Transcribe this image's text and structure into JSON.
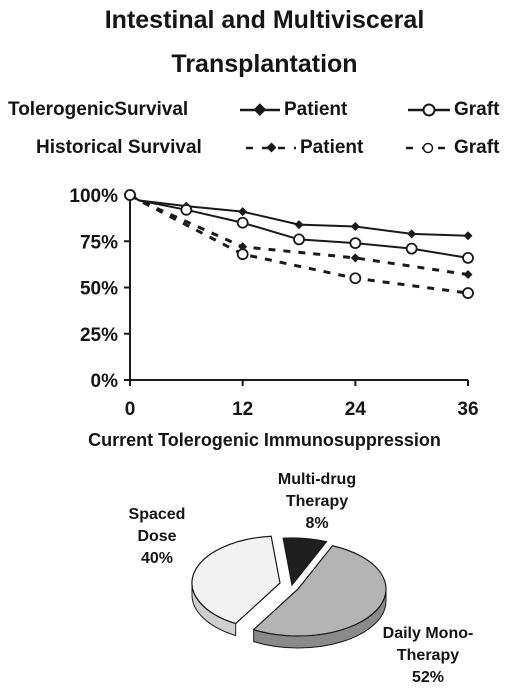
{
  "title_line1": "Intestinal and Multivisceral",
  "title_line2": "Transplantation",
  "legend": {
    "row1_label": "TolerogenicSurvival",
    "row2_label": "Historical Survival",
    "patient": "Patient",
    "graft": "Graft"
  },
  "colors": {
    "line": "#1a1a1a",
    "pie_multi": "#1f1f1f",
    "pie_daily": "#b4b4b4",
    "pie_spaced": "#f2f2f2"
  },
  "chart_data": [
    {
      "type": "line",
      "title": "",
      "xlabel": "",
      "ylabel": "",
      "xlim": [
        0,
        36
      ],
      "ylim": [
        0,
        100
      ],
      "x_ticks": [
        "0",
        "12",
        "24",
        "36"
      ],
      "y_ticks": [
        "0%",
        "25%",
        "50%",
        "75%",
        "100%"
      ],
      "grid": false,
      "legend_position": "top",
      "series": [
        {
          "name": "Patient",
          "group": "TolerogenicSurvival",
          "style": "solid",
          "marker": "diamond-filled",
          "x": [
            0,
            1,
            6,
            12,
            18,
            24,
            30,
            36
          ],
          "values": [
            100,
            97,
            94,
            91,
            84,
            83,
            79,
            78
          ]
        },
        {
          "name": "Graft",
          "group": "TolerogenicSurvival",
          "style": "solid",
          "marker": "circle-open",
          "x": [
            0,
            1,
            6,
            12,
            18,
            24,
            30,
            36
          ],
          "values": [
            100,
            97,
            92,
            85,
            76,
            74,
            71,
            66
          ]
        },
        {
          "name": "Patient",
          "group": "Historical Survival",
          "style": "dashed",
          "marker": "diamond-filled",
          "x": [
            0,
            1,
            12,
            24,
            36
          ],
          "values": [
            100,
            97,
            72,
            66,
            57
          ]
        },
        {
          "name": "Graft",
          "group": "Historical Survival",
          "style": "dashed",
          "marker": "circle-open",
          "x": [
            0,
            1,
            12,
            24,
            36
          ],
          "values": [
            100,
            97,
            68,
            55,
            47
          ]
        }
      ]
    },
    {
      "type": "pie",
      "title": "Current Tolerogenic Immunosuppression",
      "slices": [
        {
          "label_lines": [
            "Multi-drug",
            "Therapy"
          ],
          "value": 8,
          "value_label": "8%"
        },
        {
          "label_lines": [
            "Daily Mono-",
            "Therapy"
          ],
          "value": 52,
          "value_label": "52%"
        },
        {
          "label_lines": [
            "Spaced",
            "Dose"
          ],
          "value": 40,
          "value_label": "40%"
        }
      ]
    }
  ]
}
